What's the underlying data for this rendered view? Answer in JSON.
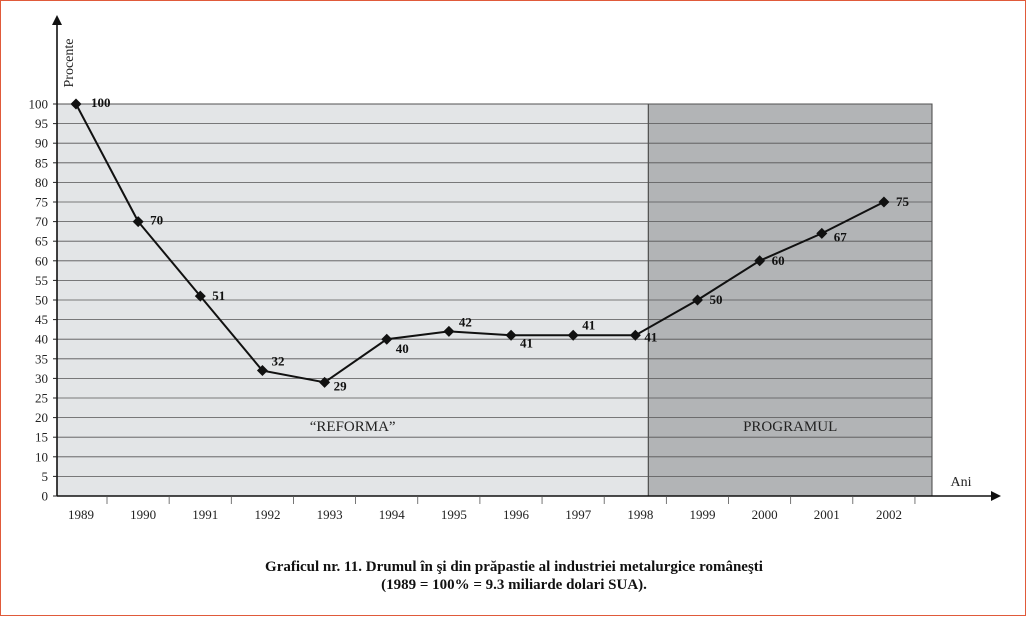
{
  "caption": {
    "line1": "Graficul nr. 11. Drumul în şi din prăpastie al industriei metalurgice româneşti",
    "line2": "(1989 = 100% = 9.3 miliarde dolari SUA)."
  },
  "colors": {
    "reforma_region": "#e3e5e7",
    "programul_region": "#b2b4b6",
    "line": "#111111",
    "grid": "#555555"
  },
  "chart_data": {
    "type": "line",
    "xlabel": "Ani",
    "ylabel": "Procente",
    "categories": [
      "1989",
      "1990",
      "1991",
      "1992",
      "1993",
      "1994",
      "1995",
      "1996",
      "1997",
      "1998",
      "1999",
      "2000",
      "2001",
      "2002"
    ],
    "series": [
      {
        "values": [
          100,
          70,
          51,
          32,
          29,
          40,
          42,
          41,
          41,
          41,
          50,
          60,
          67,
          75
        ]
      }
    ],
    "data_labels": [
      "100",
      "70",
      "51",
      "32",
      "29",
      "40",
      "42",
      "41",
      "41",
      "41",
      "50",
      "60",
      "67",
      "75"
    ],
    "ylim": [
      0,
      100
    ],
    "yticks": [
      0,
      5,
      10,
      15,
      20,
      25,
      30,
      35,
      40,
      45,
      50,
      55,
      60,
      65,
      70,
      75,
      80,
      85,
      90,
      95,
      100
    ],
    "grid": true,
    "regions": [
      {
        "label": "“REFORMA”",
        "from": "1989",
        "to": "1998"
      },
      {
        "label": "PROGRAMUL",
        "from": "1998",
        "to": "2002"
      }
    ]
  }
}
